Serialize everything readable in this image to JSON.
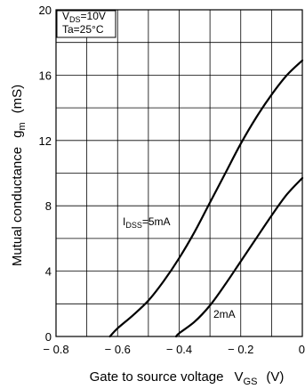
{
  "chart_data": {
    "type": "line",
    "title": "",
    "xlabel": {
      "main": "Gate to source voltage",
      "symbol": "V",
      "symbol_sub": "GS",
      "unit": "(V)"
    },
    "ylabel": {
      "main": "Mutual conductance",
      "symbol": "g",
      "symbol_sub": "m",
      "unit": "(mS)"
    },
    "xlim": [
      -0.8,
      0
    ],
    "ylim": [
      0,
      20
    ],
    "x_ticks": [
      -0.8,
      -0.6,
      -0.4,
      -0.2,
      0
    ],
    "x_tick_labels": [
      "− 0.8",
      "− 0.6",
      "− 0.4",
      "− 0.2",
      "0"
    ],
    "y_ticks": [
      0,
      4,
      8,
      12,
      16,
      20
    ],
    "y_tick_labels": [
      "0",
      "4",
      "8",
      "12",
      "16",
      "20"
    ],
    "x_grid_step": 0.1,
    "y_grid_step": 2,
    "grid": true,
    "conditions": [
      {
        "main": "V",
        "sub": "DS",
        "rest": "=10V"
      },
      {
        "main": "Ta=25°C",
        "sub": "",
        "rest": ""
      }
    ],
    "series": [
      {
        "name": {
          "main": "I",
          "sub": "DSS",
          "rest": "=5mA"
        },
        "points": [
          [
            -0.625,
            0
          ],
          [
            -0.6,
            0.5
          ],
          [
            -0.55,
            1.3
          ],
          [
            -0.5,
            2.2
          ],
          [
            -0.45,
            3.4
          ],
          [
            -0.4,
            4.8
          ],
          [
            -0.35,
            6.4
          ],
          [
            -0.3,
            8.2
          ],
          [
            -0.25,
            10.0
          ],
          [
            -0.2,
            11.8
          ],
          [
            -0.15,
            13.4
          ],
          [
            -0.1,
            14.8
          ],
          [
            -0.05,
            16.0
          ],
          [
            0,
            16.9
          ]
        ]
      },
      {
        "name": {
          "main": "2mA",
          "sub": "",
          "rest": ""
        },
        "points": [
          [
            -0.41,
            0
          ],
          [
            -0.4,
            0.2
          ],
          [
            -0.35,
            0.9
          ],
          [
            -0.3,
            1.9
          ],
          [
            -0.25,
            3.2
          ],
          [
            -0.2,
            4.6
          ],
          [
            -0.15,
            6.0
          ],
          [
            -0.1,
            7.4
          ],
          [
            -0.05,
            8.7
          ],
          [
            0,
            9.7
          ]
        ]
      }
    ]
  }
}
